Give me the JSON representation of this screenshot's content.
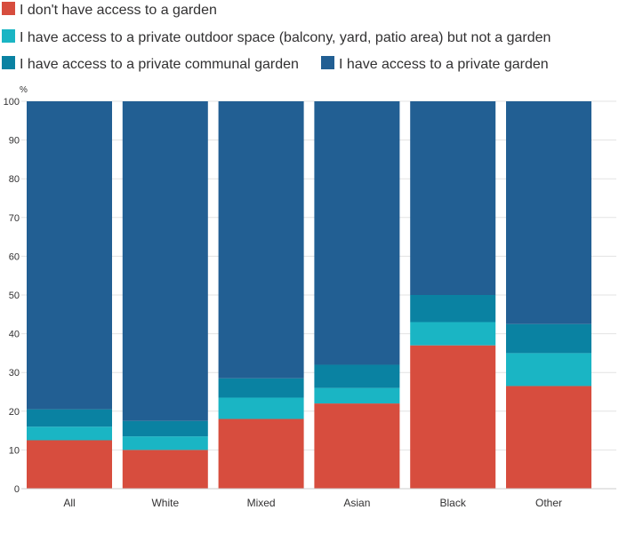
{
  "chart_data": {
    "type": "bar",
    "stacked": true,
    "percent_stacked": true,
    "title": "",
    "unit_label": "%",
    "categories": [
      "All",
      "White",
      "Mixed",
      "Asian",
      "Black",
      "Other"
    ],
    "series": [
      {
        "name": "I don't have access to a garden",
        "color": "#d74d3e",
        "values": [
          12.5,
          10.0,
          18.0,
          22.0,
          37.0,
          26.5
        ]
      },
      {
        "name": "I have access to a private outdoor space (balcony, yard, patio area) but not a garden",
        "color": "#1ab5c4",
        "values": [
          3.5,
          3.5,
          5.5,
          4.0,
          6.0,
          8.5
        ]
      },
      {
        "name": "I have access to a private communal garden",
        "color": "#0a82a2",
        "values": [
          4.5,
          4.0,
          5.0,
          6.0,
          7.0,
          7.5
        ]
      },
      {
        "name": "I have access to a private garden",
        "color": "#225f93",
        "values": [
          79.5,
          82.5,
          71.5,
          68.0,
          50.0,
          57.5
        ]
      }
    ],
    "ylim": [
      0,
      100
    ],
    "yticks": [
      0,
      10,
      20,
      30,
      40,
      50,
      60,
      70,
      80,
      90,
      100
    ],
    "grid": true,
    "legend_position": "top-left"
  }
}
